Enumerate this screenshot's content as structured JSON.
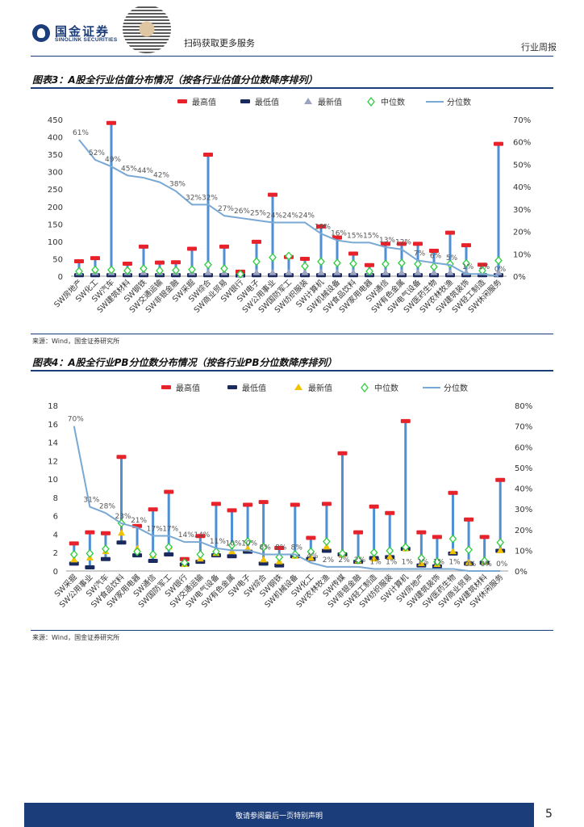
{
  "header": {
    "company_cn": "国金证券",
    "company_en": "SINOLINK SECURITIES",
    "qr_text": "扫码获取更多服务",
    "doc_type": "行业周报"
  },
  "footer": {
    "disclaimer": "敬请参阅最后一页特别声明",
    "page": "5"
  },
  "colors": {
    "max": "#e8222a",
    "min": "#1b2a5e",
    "stem": "#4f8fd4",
    "median": "#2ecc40",
    "pct_line": "#79a8d4"
  },
  "chart_data": [
    {
      "type": "bar",
      "title": "图表3：A股全行业估值分布情况（按各行业估值分位数降序排列）",
      "source": "来源：Wind，国金证券研究所",
      "legend": [
        "最高值",
        "最低值",
        "最新值",
        "中位数",
        "分位数"
      ],
      "categories": [
        "SW房地产",
        "SW化工",
        "SW汽车",
        "SW建筑材料",
        "SW钢铁",
        "SW交通运输",
        "SW非银金融",
        "SW采掘",
        "SW综合",
        "SW商业贸易",
        "SW银行",
        "SW电子",
        "SW公用事业",
        "SW国防军工",
        "SW纺织服装",
        "SW计算机",
        "SW机械设备",
        "SW食品饮料",
        "SW家用电器",
        "SW通信",
        "SW有色金属",
        "SW电气设备",
        "SW医药生物",
        "SW农林牧渔",
        "SW建筑装饰",
        "SW轻工制造",
        "SW休闲服务"
      ],
      "left_axis": {
        "ylim": [
          0,
          450
        ],
        "ticks": [
          0,
          50,
          100,
          150,
          200,
          250,
          300,
          350,
          400,
          450
        ]
      },
      "right_axis": {
        "ylim": [
          0,
          70
        ],
        "ticks": [
          "0%",
          "10%",
          "20%",
          "30%",
          "40%",
          "50%",
          "60%",
          "70%"
        ]
      },
      "max_values": [
        43,
        52,
        440,
        36,
        85,
        39,
        40,
        79,
        349,
        85,
        13,
        99,
        234,
        55,
        50,
        143,
        111,
        65,
        32,
        93,
        93,
        93,
        73,
        125,
        89,
        33,
        380
      ],
      "min_values": [
        3,
        3,
        3,
        3,
        3,
        3,
        3,
        3,
        3,
        3,
        2,
        3,
        3,
        3,
        3,
        3,
        3,
        3,
        3,
        3,
        3,
        3,
        3,
        3,
        3,
        3,
        3
      ],
      "latest_values": [
        10,
        10,
        10,
        10,
        10,
        10,
        10,
        10,
        10,
        10,
        3,
        10,
        10,
        10,
        10,
        10,
        10,
        10,
        10,
        10,
        10,
        10,
        10,
        10,
        10,
        10,
        10
      ],
      "median_values": [
        14,
        18,
        18,
        16,
        22,
        16,
        17,
        19,
        33,
        22,
        6,
        42,
        54,
        58,
        29,
        42,
        38,
        36,
        14,
        35,
        38,
        35,
        27,
        35,
        37,
        16,
        45
      ],
      "percentile": [
        61,
        52,
        49,
        45,
        44,
        42,
        38,
        32,
        32,
        27,
        26,
        25,
        24,
        24,
        24,
        19,
        16,
        15,
        15,
        13,
        12,
        7,
        6,
        5,
        1,
        1,
        0
      ],
      "percentile_labels": [
        "61%",
        "52%",
        "49%",
        "45%",
        "44%",
        "42%",
        "38%",
        "32%",
        "32%",
        "27%",
        "26%",
        "25%",
        "24%",
        "24%",
        "24%",
        "19%",
        "16%",
        "15%",
        "15%",
        "13%",
        "12%",
        "7%",
        "6%",
        "5%",
        "1%",
        "1%",
        "0%"
      ]
    },
    {
      "type": "bar",
      "title": "图表4：A股全行业PB分位数分布情况（按各行业PB分位数降序排列）",
      "source": "来源：Wind，国金证券研究所",
      "legend": [
        "最高值",
        "最低值",
        "最新值",
        "中位数",
        "分位数"
      ],
      "categories": [
        "SW采掘",
        "SW公用事业",
        "SW汽车",
        "SW食品饮料",
        "SW家用电器",
        "SW通信",
        "SW国防军工",
        "SW银行",
        "SW交通运输",
        "SW电气设备",
        "SW有色金属",
        "SW电子",
        "SW综合",
        "SW钢铁",
        "SW机械设备",
        "SW化工",
        "SW农林牧渔",
        "SW传媒",
        "SW非银金融",
        "SW轻工制造",
        "SW纺织服装",
        "SW计算机",
        "SW房地产",
        "SW建筑装饰",
        "SW医药生物",
        "SW商业贸易",
        "SW建筑材料",
        "SW休闲服务"
      ],
      "left_axis": {
        "ylim": [
          0,
          18
        ],
        "ticks": [
          0,
          2,
          4,
          6,
          8,
          10,
          12,
          14,
          16,
          18
        ]
      },
      "right_axis": {
        "ylim": [
          0,
          80
        ],
        "ticks": [
          "0%",
          "10%",
          "20%",
          "30%",
          "40%",
          "50%",
          "60%",
          "70%",
          "80%"
        ]
      },
      "max_values": [
        3.0,
        4.2,
        4.1,
        12.4,
        4.9,
        6.7,
        8.6,
        1.3,
        3.8,
        7.3,
        6.6,
        7.2,
        7.5,
        2.5,
        7.2,
        3.6,
        7.3,
        12.8,
        4.2,
        7.0,
        6.3,
        16.3,
        4.2,
        3.7,
        8.5,
        5.6,
        3.7,
        9.9
      ],
      "min_values": [
        0.8,
        0.4,
        1.3,
        3.1,
        1.7,
        1.1,
        1.8,
        0.7,
        1.0,
        1.7,
        1.6,
        2.1,
        0.8,
        0.6,
        1.6,
        1.3,
        2.2,
        1.8,
        1.0,
        1.4,
        1.5,
        2.4,
        0.6,
        0.5,
        1.9,
        0.8,
        0.9,
        2.2
      ],
      "latest_values": [
        1.2,
        1.4,
        2.1,
        4.1,
        2.4,
        1.7,
        2.6,
        0.7,
        1.3,
        1.9,
        2.1,
        2.4,
        1.2,
        1.0,
        1.6,
        1.4,
        2.6,
        1.8,
        1.1,
        1.3,
        1.5,
        2.4,
        0.8,
        0.7,
        2.1,
        0.9,
        1.0,
        2.2
      ],
      "median_values": [
        1.8,
        1.9,
        2.4,
        5.2,
        2.1,
        1.8,
        2.6,
        0.9,
        1.8,
        2.1,
        2.8,
        3.2,
        2.6,
        1.5,
        1.8,
        2.1,
        3.2,
        1.9,
        1.2,
        2.0,
        2.2,
        2.6,
        1.4,
        1.0,
        3.5,
        2.3,
        1.1,
        3.1
      ],
      "percentile": [
        70,
        31,
        28,
        23,
        21,
        17,
        17,
        14,
        14,
        11,
        10,
        10,
        8,
        8,
        8,
        4,
        2,
        2,
        2,
        1,
        1,
        1,
        1,
        1,
        1,
        0,
        0,
        0
      ],
      "percentile_labels": [
        "70%",
        "31%",
        "28%",
        "23%",
        "21%",
        "17%",
        "17%",
        "14%",
        "14%",
        "11%",
        "10%",
        "10%",
        "8%",
        "8%",
        "8%",
        "4%",
        "2%",
        "2%",
        "2%",
        "1%",
        "1%",
        "1%",
        "1%",
        "1%",
        "1%",
        "0%",
        "0%",
        "0%"
      ]
    }
  ]
}
